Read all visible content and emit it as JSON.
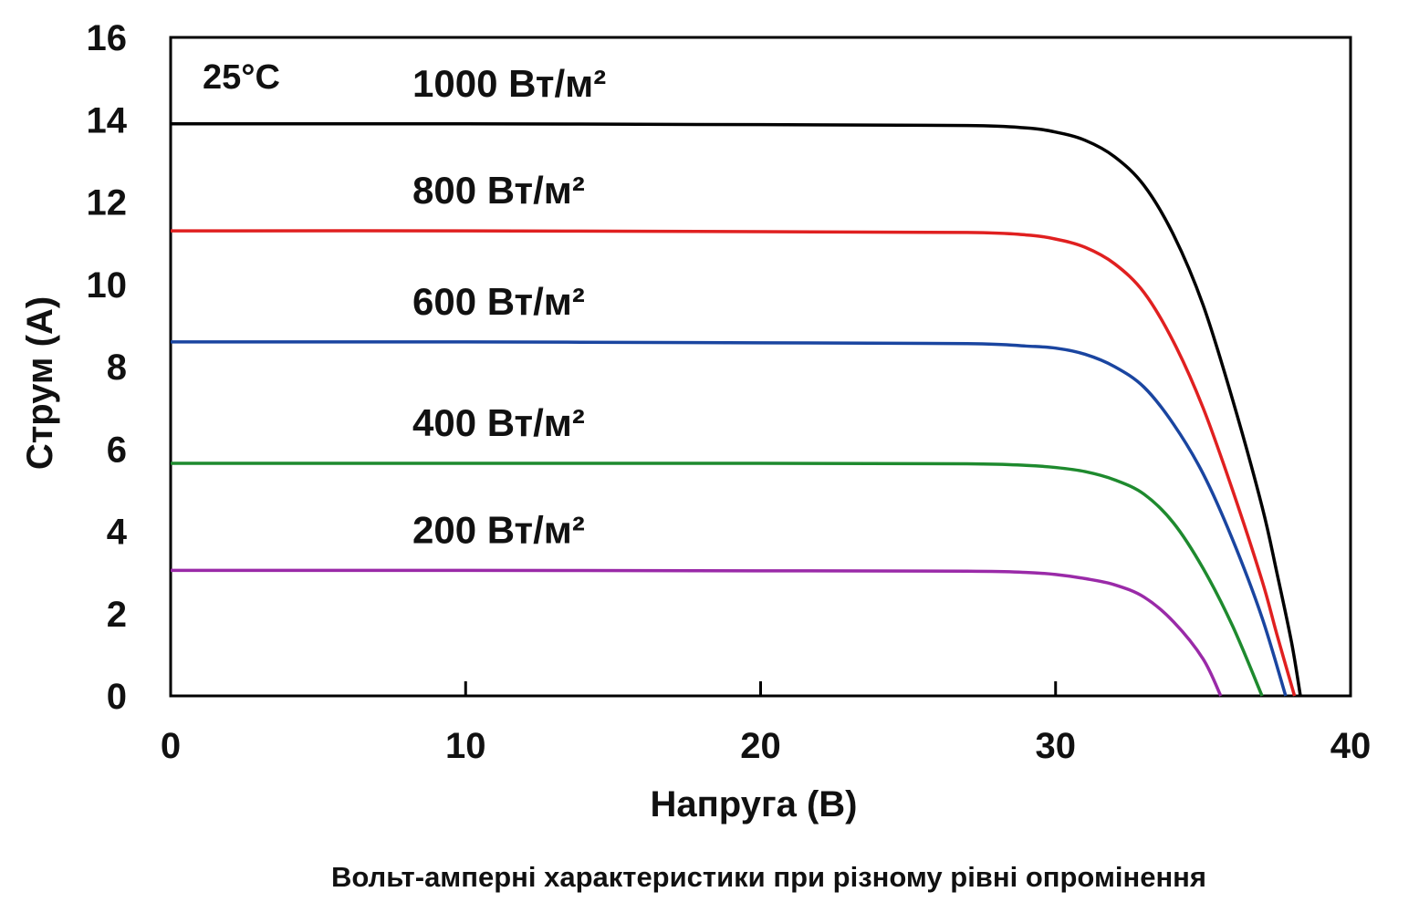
{
  "caption": "Вольт-амперні характеристики при різному рівні опромінення",
  "chart_data": {
    "type": "line",
    "xlabel": "Напруга (В)",
    "ylabel": "Струм (A)",
    "xlim": [
      0,
      40
    ],
    "ylim": [
      0,
      16
    ],
    "xticks": [
      0,
      10,
      20,
      30,
      40
    ],
    "yticks": [
      0,
      2,
      4,
      6,
      8,
      10,
      12,
      14,
      16
    ],
    "grid": false,
    "annotation": "25°C",
    "series": [
      {
        "name": "1000 Вт/м²",
        "color": "#000000",
        "points": [
          [
            0,
            13.9
          ],
          [
            10,
            13.9
          ],
          [
            20,
            13.88
          ],
          [
            27,
            13.86
          ],
          [
            29,
            13.8
          ],
          [
            30,
            13.7
          ],
          [
            31,
            13.5
          ],
          [
            32,
            13.1
          ],
          [
            33,
            12.4
          ],
          [
            34,
            11.2
          ],
          [
            35,
            9.5
          ],
          [
            36,
            7.2
          ],
          [
            37,
            4.6
          ],
          [
            37.5,
            3.0
          ],
          [
            38,
            1.3
          ],
          [
            38.3,
            0
          ]
        ]
      },
      {
        "name": "800 Вт/м²",
        "color": "#e02020",
        "points": [
          [
            0,
            11.3
          ],
          [
            10,
            11.3
          ],
          [
            20,
            11.28
          ],
          [
            27,
            11.26
          ],
          [
            29,
            11.2
          ],
          [
            30,
            11.1
          ],
          [
            31,
            10.9
          ],
          [
            32,
            10.5
          ],
          [
            33,
            9.8
          ],
          [
            34,
            8.6
          ],
          [
            35,
            7.0
          ],
          [
            36,
            5.0
          ],
          [
            37,
            2.8
          ],
          [
            37.5,
            1.5
          ],
          [
            38.1,
            0
          ]
        ]
      },
      {
        "name": "600 Вт/м²",
        "color": "#1a45a0",
        "points": [
          [
            0,
            8.6
          ],
          [
            10,
            8.6
          ],
          [
            20,
            8.58
          ],
          [
            27,
            8.56
          ],
          [
            29,
            8.5
          ],
          [
            30,
            8.45
          ],
          [
            31,
            8.3
          ],
          [
            32,
            8.0
          ],
          [
            33,
            7.5
          ],
          [
            34,
            6.6
          ],
          [
            35,
            5.4
          ],
          [
            36,
            3.8
          ],
          [
            37,
            1.9
          ],
          [
            37.8,
            0
          ]
        ]
      },
      {
        "name": "400 Вт/м²",
        "color": "#1e8a2e",
        "points": [
          [
            0,
            5.65
          ],
          [
            10,
            5.65
          ],
          [
            20,
            5.65
          ],
          [
            27,
            5.64
          ],
          [
            29,
            5.6
          ],
          [
            30,
            5.55
          ],
          [
            31,
            5.45
          ],
          [
            32,
            5.25
          ],
          [
            33,
            4.9
          ],
          [
            34,
            4.2
          ],
          [
            35,
            3.1
          ],
          [
            36,
            1.7
          ],
          [
            37,
            0
          ]
        ]
      },
      {
        "name": "200 Вт/м²",
        "color": "#9a2aa8",
        "points": [
          [
            0,
            3.05
          ],
          [
            10,
            3.05
          ],
          [
            20,
            3.04
          ],
          [
            27,
            3.03
          ],
          [
            29,
            3.0
          ],
          [
            30,
            2.95
          ],
          [
            31,
            2.85
          ],
          [
            32,
            2.7
          ],
          [
            33,
            2.4
          ],
          [
            34,
            1.8
          ],
          [
            35,
            0.9
          ],
          [
            35.6,
            0
          ]
        ]
      }
    ]
  }
}
